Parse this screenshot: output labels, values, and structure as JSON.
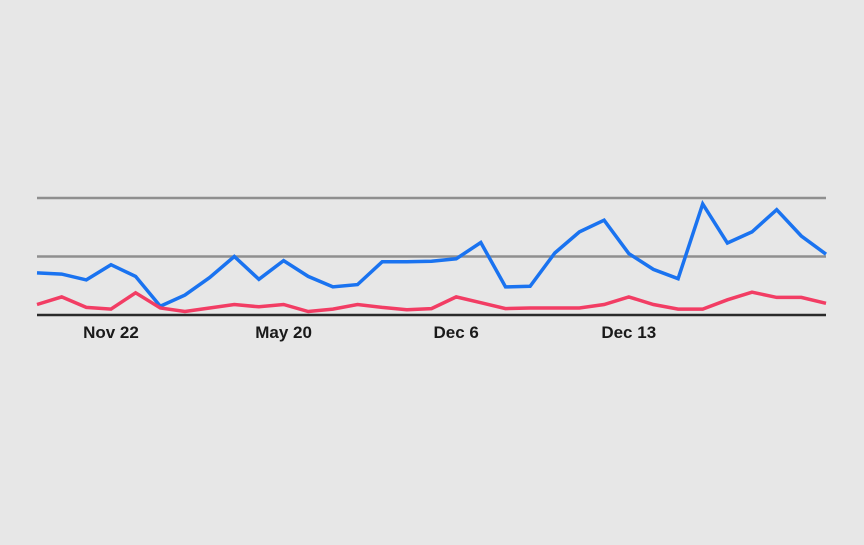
{
  "chart_data": {
    "type": "line",
    "title": "",
    "xlabel": "",
    "ylabel": "",
    "x": [
      0,
      1,
      2,
      3,
      4,
      5,
      6,
      7,
      8,
      9,
      10,
      11,
      12,
      13,
      14,
      15,
      16,
      17,
      18,
      19,
      20,
      21,
      22,
      23,
      24,
      25,
      26,
      27,
      28,
      29,
      30,
      31,
      32
    ],
    "x_tick_labels": [
      {
        "x": 3,
        "label": "Nov 22"
      },
      {
        "x": 10,
        "label": "May 20"
      },
      {
        "x": 17,
        "label": "Dec 6"
      },
      {
        "x": 24,
        "label": "Dec 13"
      }
    ],
    "ylim": [
      0,
      2
    ],
    "gridlines_y": [
      1,
      2
    ],
    "grid": true,
    "series": [
      {
        "color": "#1a73f0",
        "values": [
          0.72,
          0.7,
          0.6,
          0.86,
          0.66,
          0.15,
          0.34,
          0.64,
          1.0,
          0.61,
          0.93,
          0.66,
          0.48,
          0.52,
          0.91,
          0.91,
          0.92,
          0.96,
          1.24,
          0.48,
          0.49,
          1.06,
          1.42,
          1.62,
          1.05,
          0.78,
          0.62,
          1.9,
          1.23,
          1.42,
          1.8,
          1.35,
          1.04
        ]
      },
      {
        "color": "#f23d64",
        "values": [
          0.18,
          0.31,
          0.13,
          0.1,
          0.38,
          0.12,
          0.06,
          0.12,
          0.18,
          0.14,
          0.18,
          0.06,
          0.1,
          0.18,
          0.13,
          0.09,
          0.11,
          0.31,
          0.21,
          0.11,
          0.12,
          0.12,
          0.12,
          0.18,
          0.31,
          0.18,
          0.1,
          0.1,
          0.26,
          0.39,
          0.3,
          0.3,
          0.2
        ]
      }
    ]
  }
}
